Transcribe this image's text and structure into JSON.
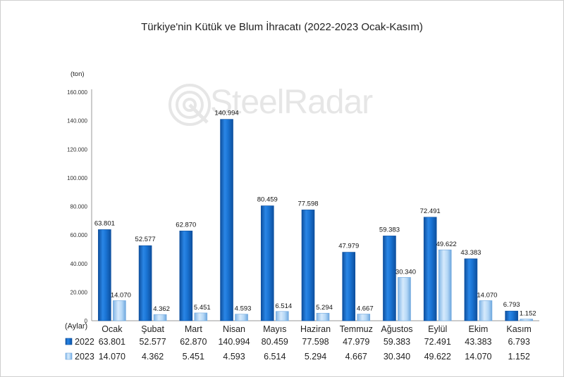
{
  "watermark": {
    "text": "SteelRadar"
  },
  "colors": {
    "series_2022": "#1a74d4",
    "series_2022_dark": "#0d4f9e",
    "series_2023": "#a9cff3",
    "series_2023_dark": "#6ea7de",
    "axis": "#9a9a9a"
  },
  "chart_data": {
    "type": "bar",
    "title": "Türkiye'nin Kütük ve Blum İhracatı (2022-2023 Ocak-Kasım)",
    "unit_label": "(ton)",
    "xlabel": "(Aylar)",
    "ylim": [
      0,
      160000
    ],
    "y_ticks": [
      0,
      20000,
      40000,
      60000,
      80000,
      100000,
      120000,
      140000,
      160000
    ],
    "y_tick_labels": [
      "0",
      "20.000",
      "40.000",
      "60.000",
      "80.000",
      "100.000",
      "120.000",
      "140.000",
      "160.000"
    ],
    "grid": false,
    "legend": "bottom-data-table",
    "categories": [
      "Ocak",
      "Şubat",
      "Mart",
      "Nisan",
      "Mayıs",
      "Haziran",
      "Temmuz",
      "Ağustos",
      "Eylül",
      "Ekim",
      "Kasım"
    ],
    "series": [
      {
        "name": "2022",
        "values": [
          63801,
          52577,
          62870,
          140994,
          80459,
          77598,
          47979,
          59383,
          72491,
          43383,
          6793
        ],
        "labels": [
          "63.801",
          "52.577",
          "62.870",
          "140.994",
          "80.459",
          "77.598",
          "47.979",
          "59.383",
          "72.491",
          "43.383",
          "6.793"
        ]
      },
      {
        "name": "2023",
        "values": [
          14070,
          4362,
          5451,
          4593,
          6514,
          5294,
          4667,
          30340,
          49622,
          14070,
          1152
        ],
        "labels": [
          "14.070",
          "4.362",
          "5.451",
          "4.593",
          "6.514",
          "5.294",
          "4.667",
          "30.340",
          "49.622",
          "14.070",
          "1.152"
        ]
      }
    ]
  }
}
